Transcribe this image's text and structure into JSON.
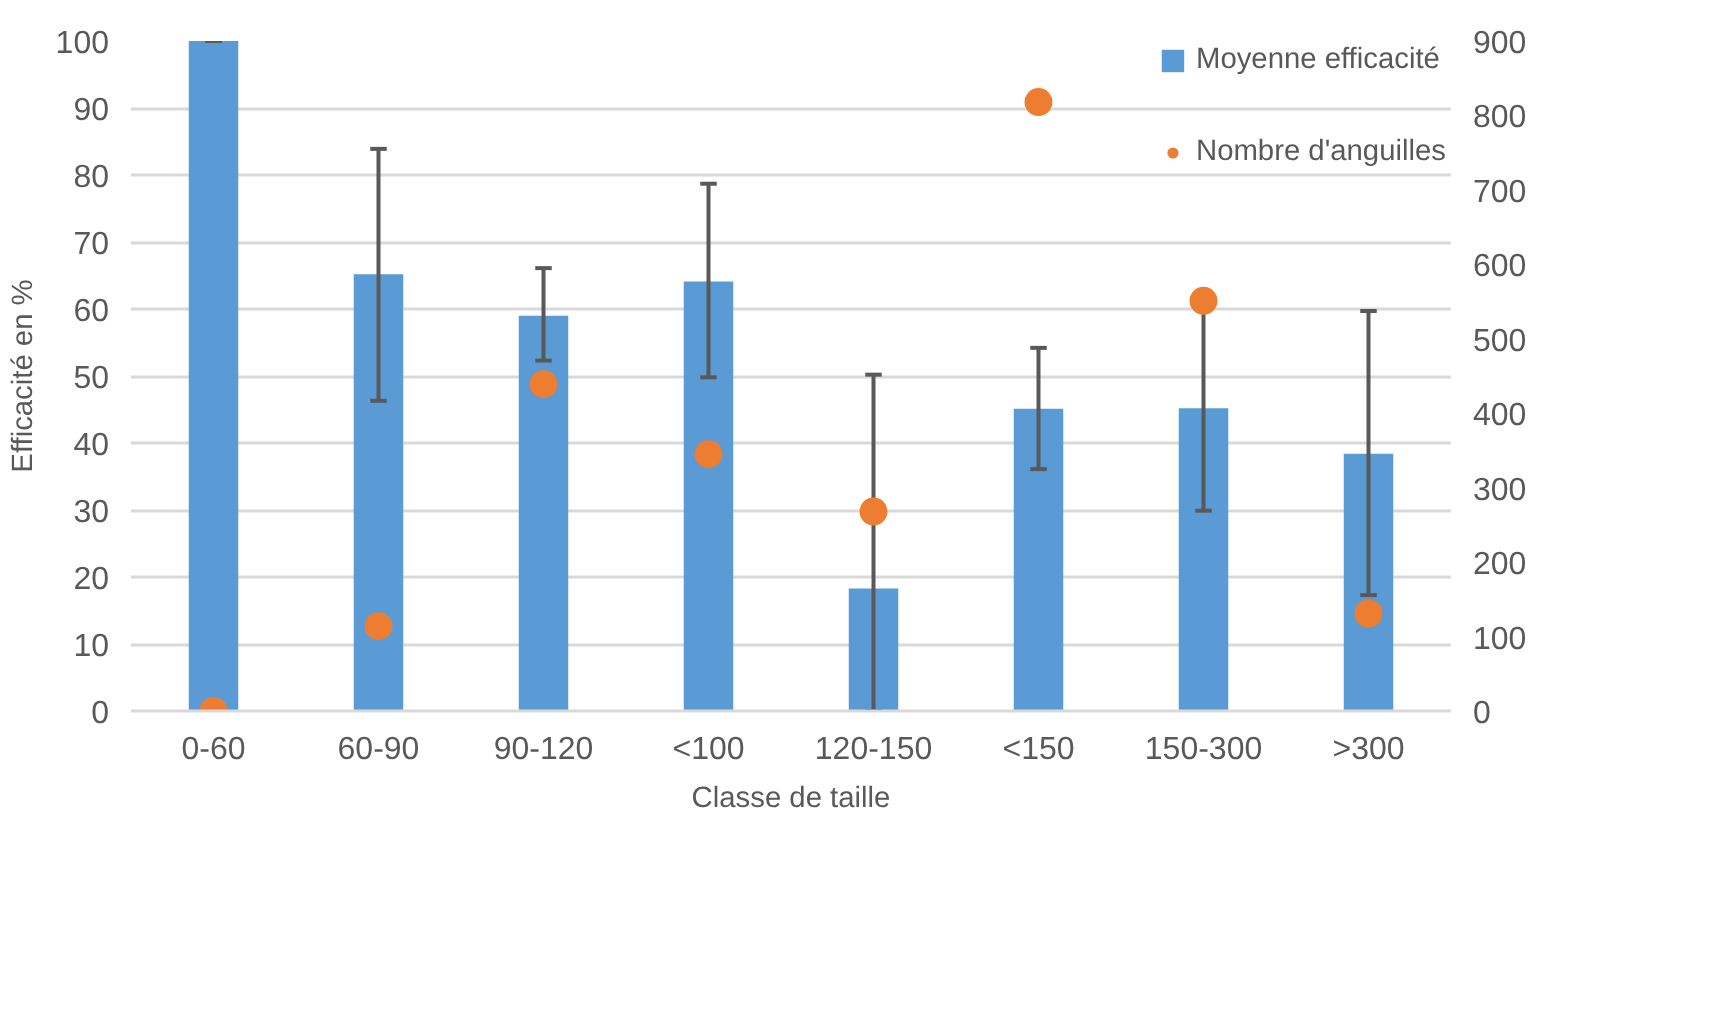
{
  "chart_data": {
    "type": "bar",
    "xlabel": "Classe de taille",
    "ylabel": "Efficacité en %",
    "categories": [
      "0-60",
      "60-90",
      "90-120",
      "<100",
      "120-150",
      "<150",
      "150-300",
      ">300"
    ],
    "series": [
      {
        "name": "Moyenne efficacité",
        "color": "#5b9bd5",
        "values": [
          100,
          65.2,
          59.0,
          64.1,
          18.3,
          45.1,
          45.2,
          38.4
        ],
        "errors": [
          [
            100,
            100
          ],
          [
            46.3,
            83.9
          ],
          [
            52.3,
            66.1
          ],
          [
            49.8,
            78.7
          ],
          [
            0,
            50.2
          ],
          [
            36.1,
            54.2
          ],
          [
            29.9,
            60.0
          ],
          [
            17.3,
            59.7
          ]
        ]
      },
      {
        "name": "Nombre d'anguilles",
        "type": "scatter",
        "axis": "y2",
        "color": "#ed7d31",
        "marker": "circle",
        "values": [
          0,
          114,
          439,
          345,
          268,
          818,
          551,
          131
        ]
      }
    ],
    "ylim": [
      0,
      100
    ],
    "yticks": [
      0,
      10,
      20,
      30,
      40,
      50,
      60,
      70,
      80,
      90,
      100
    ],
    "y2lim": [
      0,
      900
    ],
    "y2ticks": [
      0,
      100,
      200,
      300,
      400,
      500,
      600,
      700,
      800,
      900
    ],
    "grid": "y",
    "legend": "top right"
  }
}
